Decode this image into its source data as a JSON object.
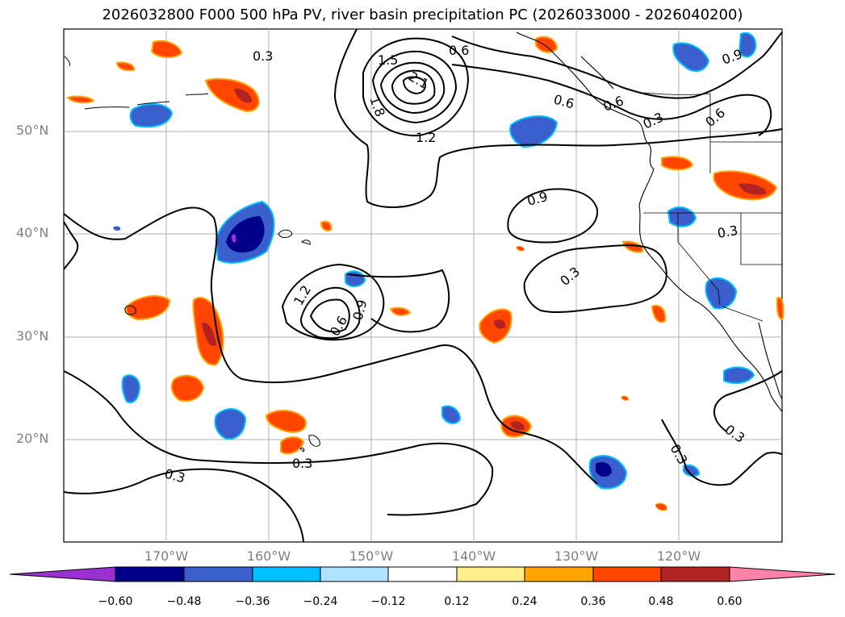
{
  "title": "2026032800 F000 500 hPa PV, river basin precipitation PC (2026033000 - 2026040200)",
  "map": {
    "lat_labels": [
      "50°N",
      "40°N",
      "30°N",
      "20°N"
    ],
    "lon_labels": [
      "170°W",
      "160°W",
      "150°W",
      "140°W",
      "130°W",
      "120°W"
    ],
    "contour_labels": [
      "0.3",
      "0.6",
      "0.9",
      "1.2",
      "1.5",
      "1.8",
      "2.1",
      "0.3",
      "0.6",
      "0.3",
      "0.3",
      "0.3",
      "0.3",
      "0.6",
      "0.9",
      "1.2",
      "0.6",
      "0.9",
      "0.3",
      "0.3",
      "0.6"
    ]
  },
  "colorbar": {
    "ticks": [
      "−0.60",
      "−0.48",
      "−0.36",
      "−0.24",
      "−0.12",
      "0.12",
      "0.24",
      "0.36",
      "0.48",
      "0.60"
    ],
    "colors": [
      "#9b30d0",
      "#00008b",
      "#3a5fcd",
      "#00bfff",
      "#b0e2ff",
      "#ffffff",
      "#ffec8b",
      "#ffa500",
      "#ff4500",
      "#b22222",
      "#ff82ab"
    ]
  }
}
